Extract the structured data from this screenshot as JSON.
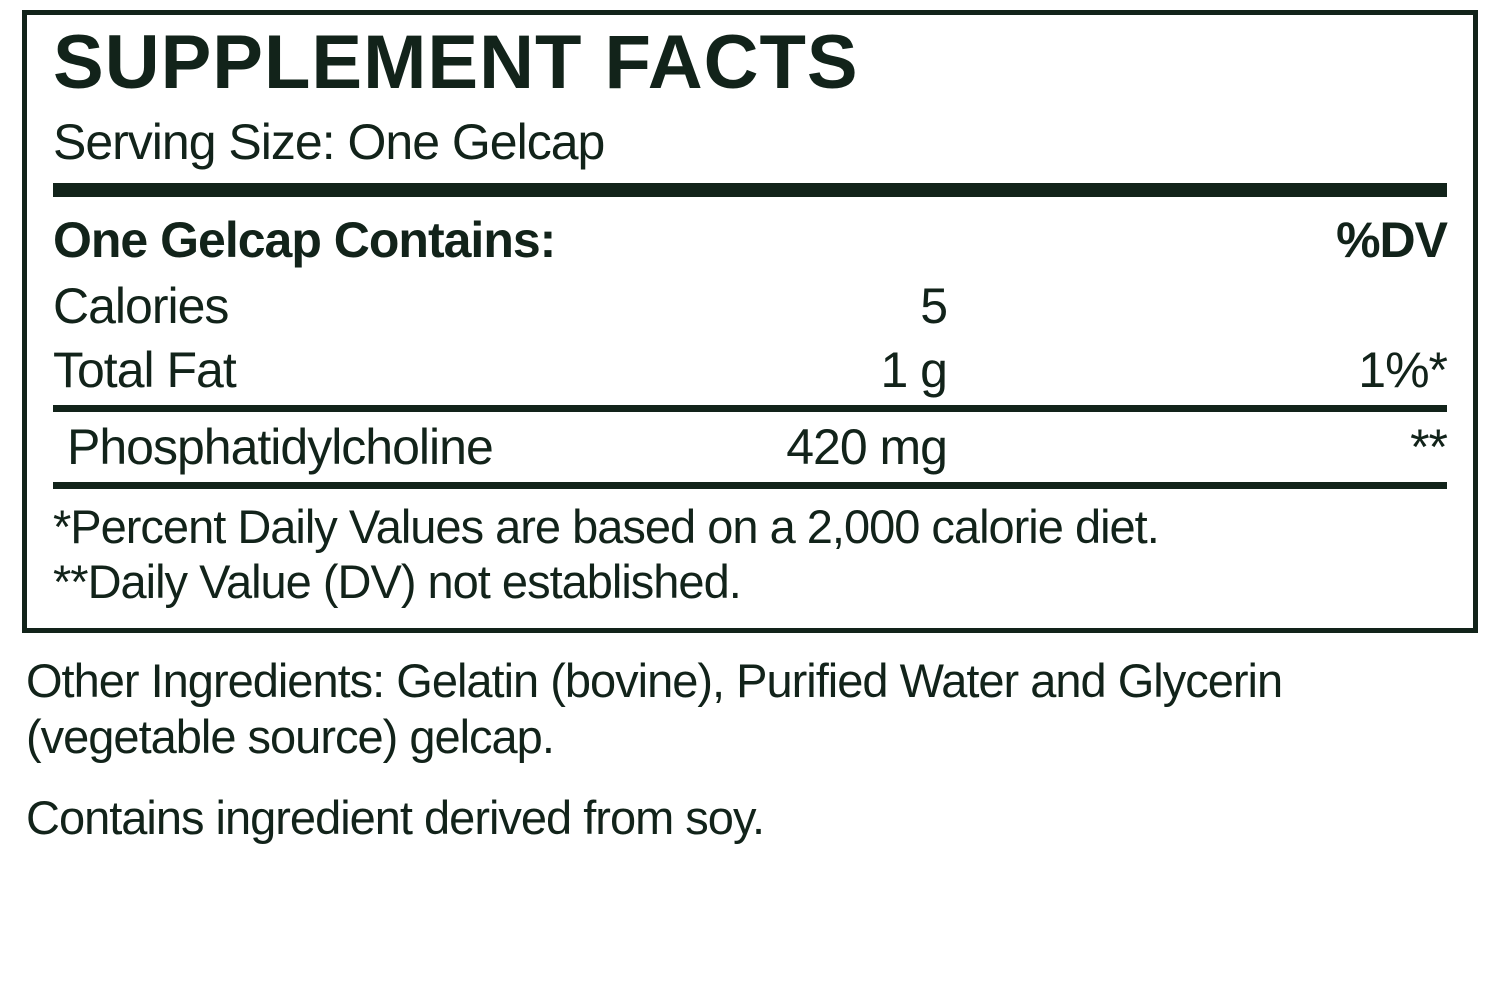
{
  "facts": {
    "title": "SUPPLEMENT FACTS",
    "serving_size_label": "Serving Size:",
    "serving_size_value": "One Gelcap",
    "contains_label": "One Gelcap Contains:",
    "dv_label": "%DV",
    "rows": [
      {
        "name": "Calories",
        "amount": "5",
        "dv": "",
        "indent": false
      },
      {
        "name": "Total Fat",
        "amount": "1 g",
        "dv": "1%*",
        "indent": false
      }
    ],
    "rows2": [
      {
        "name": "Phosphatidylcholine",
        "amount": "420 mg",
        "dv": "**",
        "indent": true
      }
    ],
    "footnote1": "*Percent Daily Values are based on a 2,000 calorie diet.",
    "footnote2": "**Daily Value (DV) not established."
  },
  "below": {
    "other_ingredients": "Other Ingredients: Gelatin (bovine), Purified Water and Glycerin (vegetable source) gelcap.",
    "allergen": "Contains ingredient derived from soy."
  },
  "colors": {
    "text": "#12231a",
    "border": "#12231a",
    "background": "#ffffff"
  }
}
